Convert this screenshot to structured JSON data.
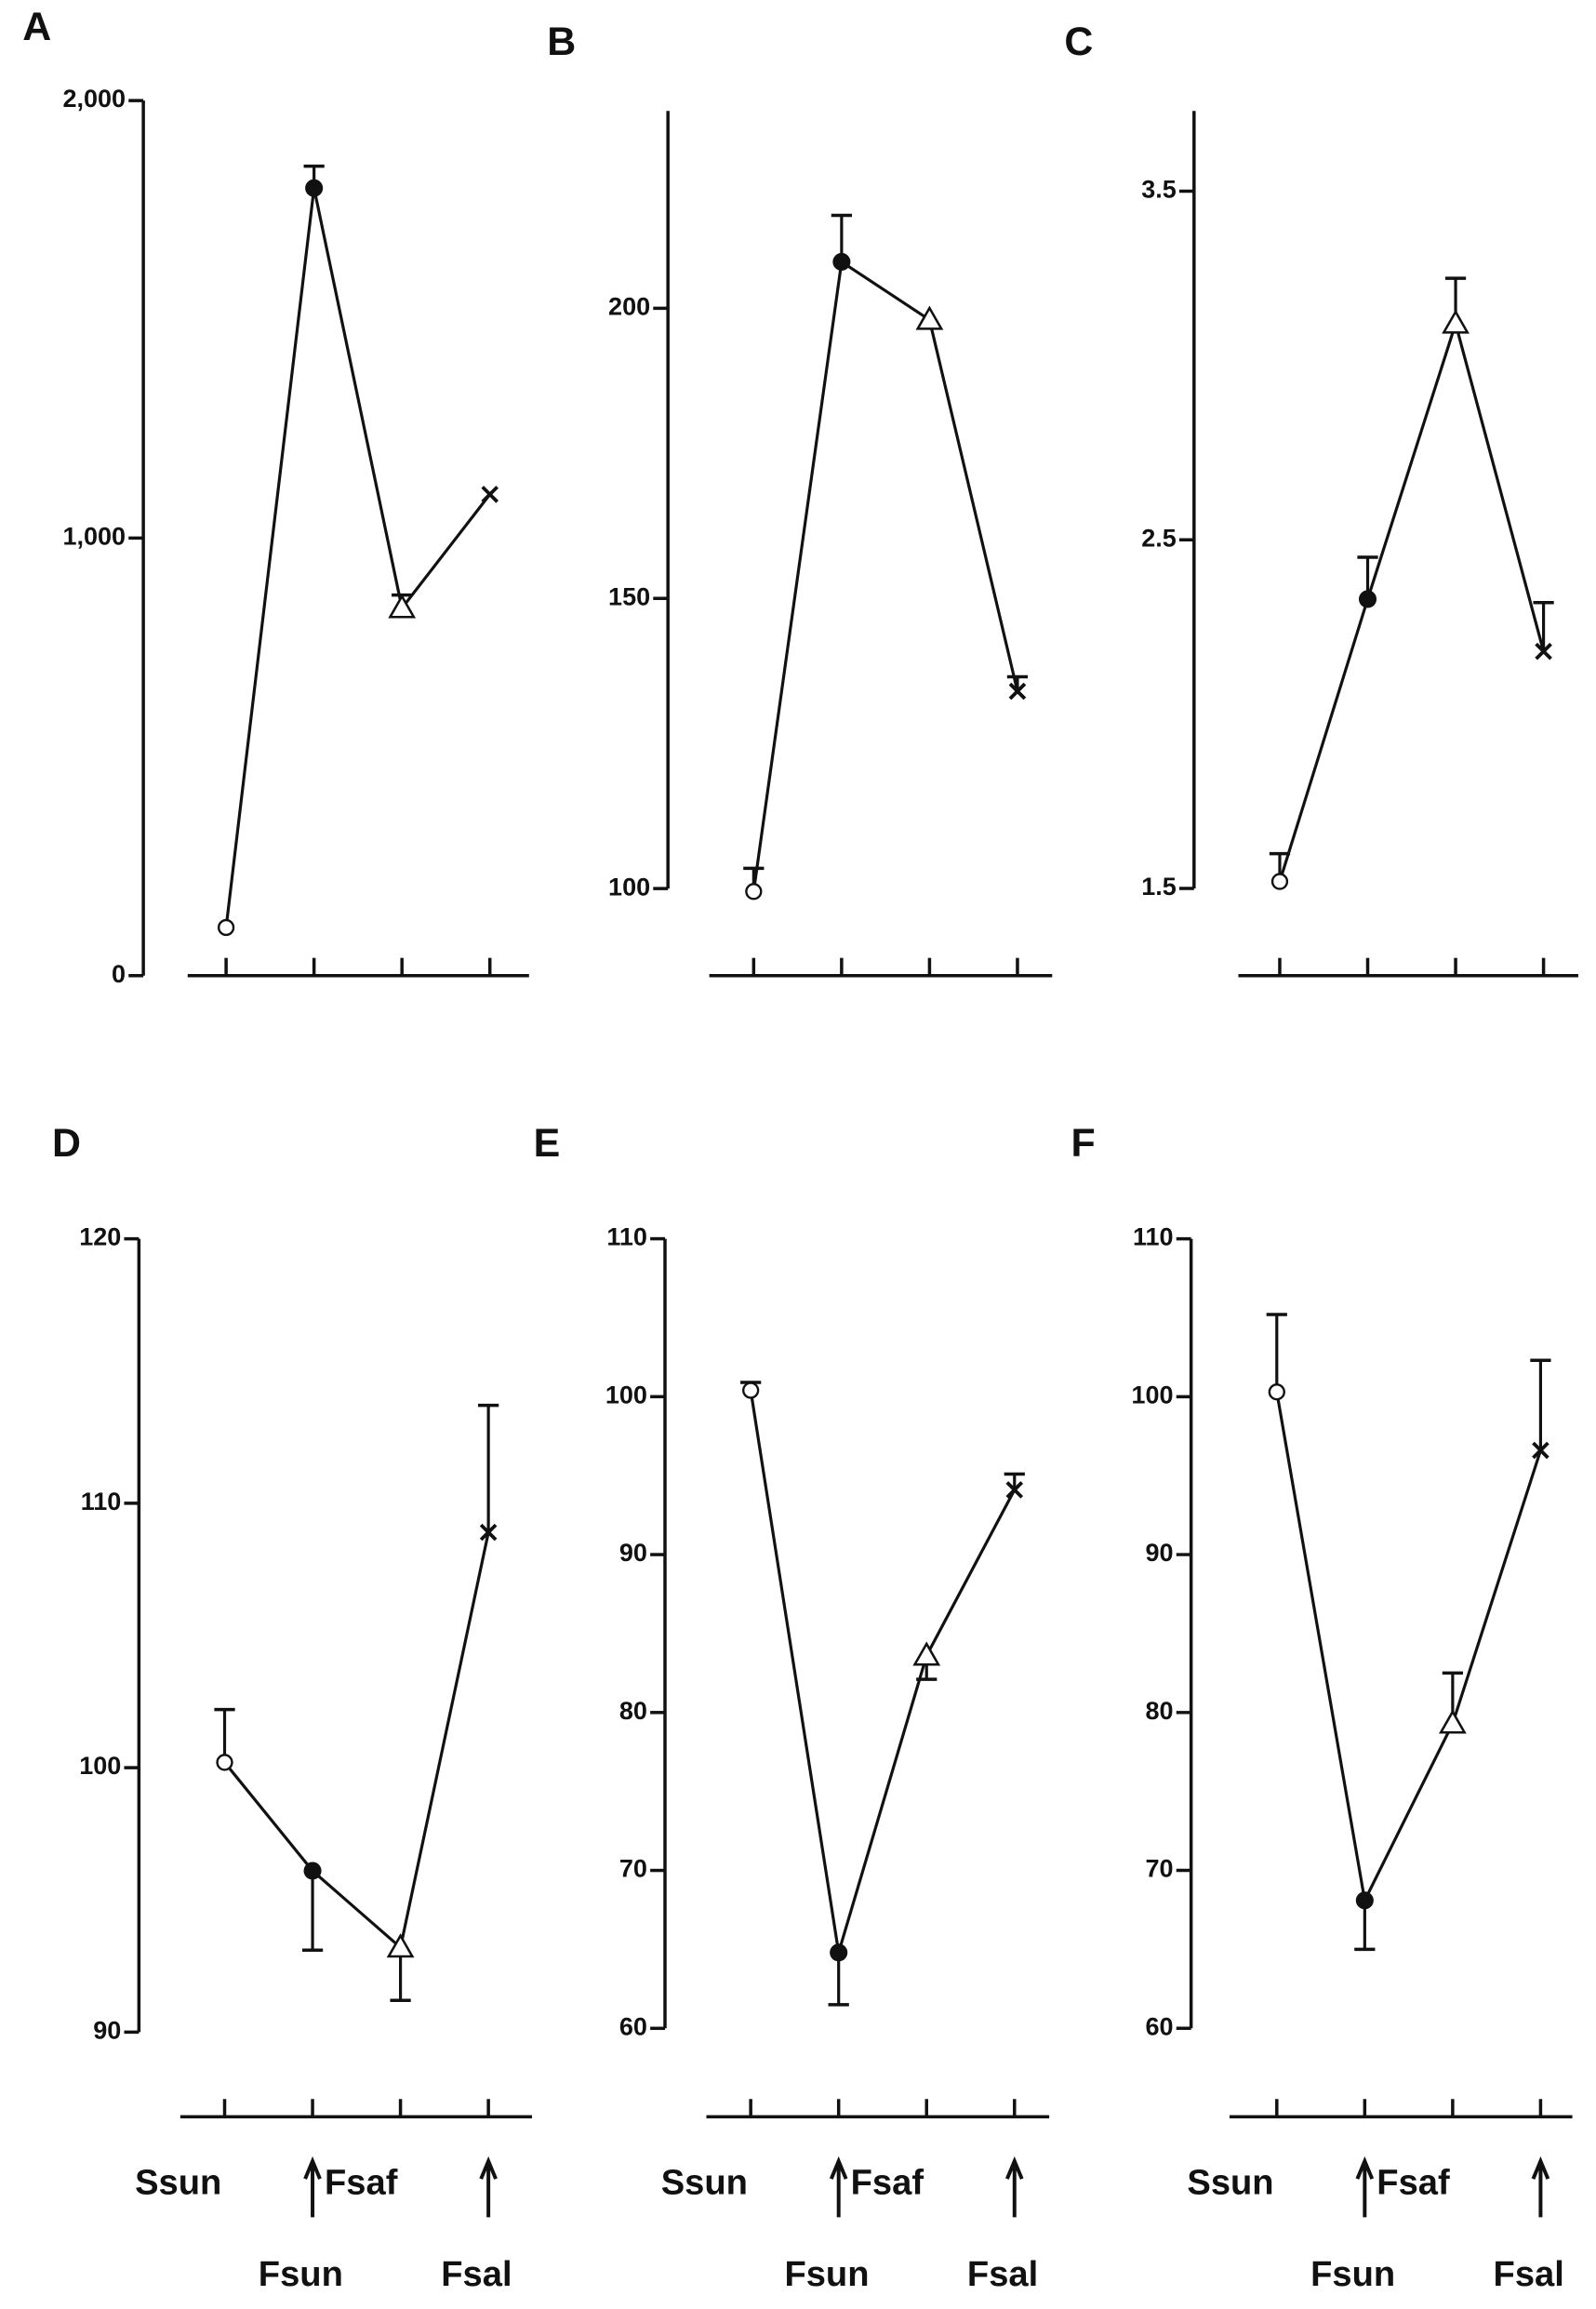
{
  "chart_data": [
    {
      "type": "line",
      "label": "A",
      "categories": [
        null,
        null,
        null,
        null
      ],
      "ylim": [
        0,
        2000
      ],
      "yticks": [
        0,
        {
          "value": 1000,
          "label": "1,000"
        },
        {
          "value": 2000,
          "label": "2,000"
        }
      ],
      "markers": [
        "open-circle",
        "filled-circle",
        "triangle",
        "cross"
      ],
      "series": [
        {
          "color": "#111111",
          "values": [
            110,
            1800,
            840,
            1100
          ],
          "errors": [
            null,
            50,
            30,
            null
          ],
          "error_side": [
            "up",
            "up",
            "up",
            "up"
          ]
        }
      ]
    },
    {
      "type": "line",
      "label": "B",
      "categories": [
        null,
        null,
        null,
        null
      ],
      "ylim": [
        85,
        234
      ],
      "yticks": [
        100,
        150,
        200
      ],
      "markers": [
        "open-circle",
        "filled-circle",
        "triangle",
        "cross"
      ],
      "series": [
        {
          "color": "#111111",
          "values": [
            99.5,
            208,
            198,
            134
          ],
          "errors": [
            4,
            8,
            null,
            2.5
          ],
          "error_side": [
            "up",
            "up",
            "up",
            "up"
          ]
        }
      ]
    },
    {
      "type": "line",
      "label": "C",
      "categories": [
        null,
        null,
        null,
        null
      ],
      "ylim": [
        1.25,
        3.73
      ],
      "yticks": [
        1.5,
        2.5,
        3.5
      ],
      "markers": [
        "open-circle",
        "filled-circle",
        "triangle",
        "cross"
      ],
      "series": [
        {
          "color": "#111111",
          "values": [
            1.52,
            2.33,
            3.12,
            2.18
          ],
          "errors": [
            0.08,
            0.12,
            0.13,
            0.14
          ],
          "error_side": [
            "up",
            "up",
            "up",
            "up"
          ]
        }
      ]
    },
    {
      "type": "line",
      "label": "D",
      "categories": [
        "Ssun",
        "Fsun",
        "Fsaf",
        "Fsal"
      ],
      "ylim": [
        86.8,
        120
      ],
      "yticks": [
        90,
        100,
        110,
        120
      ],
      "markers": [
        "open-circle",
        "filled-circle",
        "triangle",
        "cross"
      ],
      "series": [
        {
          "color": "#111111",
          "values": [
            100.2,
            96.1,
            93.2,
            108.9
          ],
          "errors": [
            2,
            3,
            2,
            4.8
          ],
          "error_side": [
            "up",
            "down",
            "down",
            "up"
          ]
        }
      ]
    },
    {
      "type": "line",
      "label": "E",
      "categories": [
        "Ssun",
        "Fsun",
        "Fsaf",
        "Fsal"
      ],
      "ylim": [
        54.4,
        110
      ],
      "yticks": [
        60,
        70,
        80,
        90,
        100,
        110
      ],
      "markers": [
        "open-circle",
        "filled-circle",
        "triangle",
        "cross"
      ],
      "series": [
        {
          "color": "#111111",
          "values": [
            100.4,
            64.8,
            83.6,
            94.1
          ],
          "errors": [
            0.5,
            3.3,
            1.5,
            1
          ],
          "error_side": [
            "up",
            "down",
            "down",
            "up"
          ]
        }
      ]
    },
    {
      "type": "line",
      "label": "F",
      "categories": [
        "Ssun",
        "Fsun",
        "Fsaf",
        "Fsal"
      ],
      "ylim": [
        54.4,
        110
      ],
      "yticks": [
        60,
        70,
        80,
        90,
        100,
        110
      ],
      "markers": [
        "open-circle",
        "filled-circle",
        "triangle",
        "cross"
      ],
      "series": [
        {
          "color": "#111111",
          "values": [
            100.3,
            68.1,
            79.3,
            96.6
          ],
          "errors": [
            4.9,
            3.1,
            3.2,
            5.7
          ],
          "error_side": [
            "up",
            "down",
            "up",
            "up"
          ]
        }
      ]
    }
  ]
}
